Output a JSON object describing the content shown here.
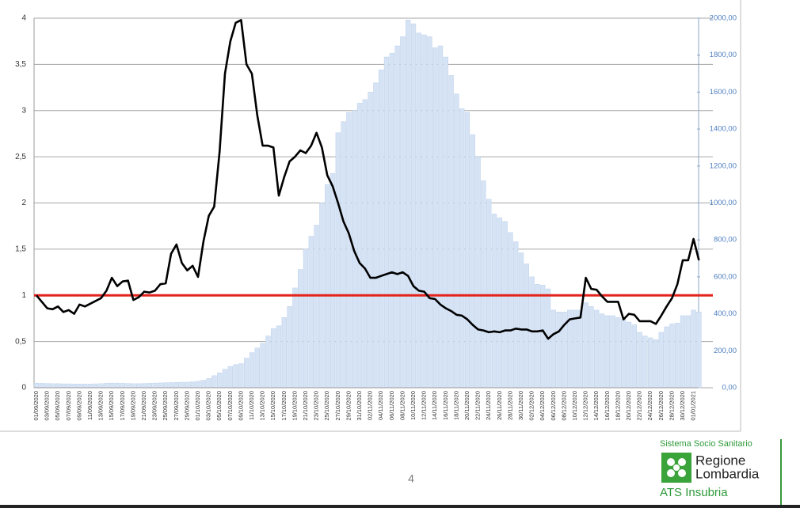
{
  "chart_data": {
    "type": "combo",
    "categories": [
      "01/09/2020",
      null,
      "03/09/2020",
      null,
      "05/09/2020",
      null,
      "07/09/2020",
      null,
      "09/09/2020",
      null,
      "11/09/2020",
      null,
      "13/09/2020",
      null,
      "15/09/2020",
      null,
      "17/09/2020",
      null,
      "19/09/2020",
      null,
      "21/09/2020",
      null,
      "23/09/2020",
      null,
      "25/09/2020",
      null,
      "27/09/2020",
      null,
      "29/09/2020",
      null,
      "01/10/2020",
      null,
      "03/10/2020",
      null,
      "05/10/2020",
      null,
      "07/10/2020",
      null,
      "09/10/2020",
      null,
      "11/10/2020",
      null,
      "13/10/2020",
      null,
      "15/10/2020",
      null,
      "17/10/2020",
      null,
      "19/10/2020",
      null,
      "21/10/2020",
      null,
      "23/10/2020",
      null,
      "25/10/2020",
      null,
      "27/10/2020",
      null,
      "29/10/2020",
      null,
      "31/10/2020",
      null,
      "02/11/2020",
      null,
      "04/11/2020",
      null,
      "06/11/2020",
      null,
      "08/11/2020",
      null,
      "10/11/2020",
      null,
      "12/11/2020",
      null,
      "14/11/2020",
      null,
      "16/11/2020",
      null,
      "18/11/2020",
      null,
      "20/11/2020",
      null,
      "22/11/2020",
      null,
      "24/11/2020",
      null,
      "26/11/2020",
      null,
      "28/11/2020",
      null,
      "30/11/2020",
      null,
      "02/12/2020",
      null,
      "04/12/2020",
      null,
      "06/12/2020",
      null,
      "08/12/2020",
      null,
      "10/12/2020",
      null,
      "12/12/2020",
      null,
      "14/12/2020",
      null,
      "16/12/2020",
      null,
      "18/12/2020",
      null,
      "20/12/2020",
      null,
      "22/12/2020",
      null,
      "24/12/2020",
      null,
      "26/12/2020",
      null,
      "28/12/2020",
      null,
      "30/12/2020",
      null,
      "01/01/2021",
      null
    ],
    "series": [
      {
        "type": "bar",
        "axis": "y2",
        "color": "#d5e3f5",
        "values": [
          25,
          24,
          23,
          22,
          22,
          21,
          21,
          20,
          20,
          20,
          20,
          21,
          22,
          24,
          25,
          25,
          24,
          23,
          22,
          22,
          23,
          24,
          25,
          26,
          27,
          28,
          29,
          30,
          30,
          32,
          35,
          40,
          50,
          65,
          80,
          100,
          115,
          125,
          130,
          160,
          190,
          215,
          240,
          280,
          320,
          335,
          380,
          440,
          540,
          640,
          750,
          820,
          880,
          1000,
          1100,
          1160,
          1380,
          1440,
          1490,
          1500,
          1540,
          1560,
          1600,
          1650,
          1720,
          1790,
          1810,
          1850,
          1900,
          1990,
          1970,
          1920,
          1910,
          1900,
          1840,
          1850,
          1790,
          1690,
          1590,
          1510,
          1490,
          1370,
          1250,
          1120,
          1020,
          940,
          920,
          900,
          840,
          790,
          730,
          670,
          600,
          560,
          555,
          535,
          420,
          410,
          410,
          420,
          420,
          420,
          460,
          440,
          420,
          400,
          390,
          390,
          380,
          370,
          355,
          340,
          300,
          280,
          270,
          260,
          300,
          330,
          345,
          350,
          390,
          390,
          420,
          410
        ]
      },
      {
        "type": "line",
        "axis": "y",
        "color": "#000000",
        "values": [
          1.0,
          0.93,
          0.86,
          0.85,
          0.88,
          0.82,
          0.84,
          0.8,
          0.9,
          0.88,
          0.91,
          0.94,
          0.97,
          1.05,
          1.19,
          1.1,
          1.15,
          1.16,
          0.95,
          0.98,
          1.04,
          1.03,
          1.05,
          1.12,
          1.13,
          1.45,
          1.55,
          1.35,
          1.27,
          1.32,
          1.2,
          1.58,
          1.86,
          1.96,
          2.55,
          3.4,
          3.75,
          3.95,
          3.98,
          3.5,
          3.4,
          2.95,
          2.62,
          2.62,
          2.6,
          2.08,
          2.28,
          2.45,
          2.5,
          2.57,
          2.54,
          2.62,
          2.76,
          2.6,
          2.3,
          2.18,
          2.0,
          1.8,
          1.67,
          1.48,
          1.35,
          1.29,
          1.19,
          1.19,
          1.21,
          1.23,
          1.25,
          1.23,
          1.25,
          1.21,
          1.1,
          1.05,
          1.04,
          0.97,
          0.96,
          0.9,
          0.86,
          0.83,
          0.79,
          0.78,
          0.74,
          0.68,
          0.63,
          0.62,
          0.6,
          0.61,
          0.6,
          0.62,
          0.62,
          0.64,
          0.63,
          0.63,
          0.61,
          0.61,
          0.62,
          0.53,
          0.58,
          0.61,
          0.68,
          0.74,
          0.75,
          0.76,
          1.19,
          1.07,
          1.06,
          0.99,
          0.93,
          0.93,
          0.93,
          0.74,
          0.8,
          0.79,
          0.72,
          0.72,
          0.72,
          0.69,
          0.78,
          0.88,
          0.97,
          1.12,
          1.38,
          1.38,
          1.61,
          1.38
        ]
      }
    ],
    "reference_line": {
      "value": 1,
      "color": "#e3231c"
    },
    "ylim": [
      0,
      4
    ],
    "yticks": [
      0,
      {
        "value": 0.5,
        "label": "0,5"
      },
      1,
      {
        "value": 1.5,
        "label": "1,5"
      },
      2,
      {
        "value": 2.5,
        "label": "2,5"
      },
      3,
      {
        "value": 3.5,
        "label": "3,5"
      },
      4
    ],
    "y2lim": [
      0,
      2000
    ],
    "y2ticks": [
      {
        "value": 0,
        "label": "0,00"
      },
      {
        "value": 200,
        "label": "200,00"
      },
      {
        "value": 400,
        "label": "400,00"
      },
      {
        "value": 600,
        "label": "600,00"
      },
      {
        "value": 800,
        "label": "800,00"
      },
      {
        "value": 1000,
        "label": "1000,00"
      },
      {
        "value": 1200,
        "label": "1200,00"
      },
      {
        "value": 1400,
        "label": "1400,00"
      },
      {
        "value": 1600,
        "label": "1600,00"
      },
      {
        "value": 1800,
        "label": "1800,00"
      },
      {
        "value": 2000,
        "label": "2000,00"
      }
    ],
    "grid": true
  },
  "page_number": "4",
  "logo": {
    "system": "Sistema Socio Sanitario",
    "region_line1": "Regione",
    "region_line2": "Lombardia",
    "agency": "ATS Insubria"
  }
}
